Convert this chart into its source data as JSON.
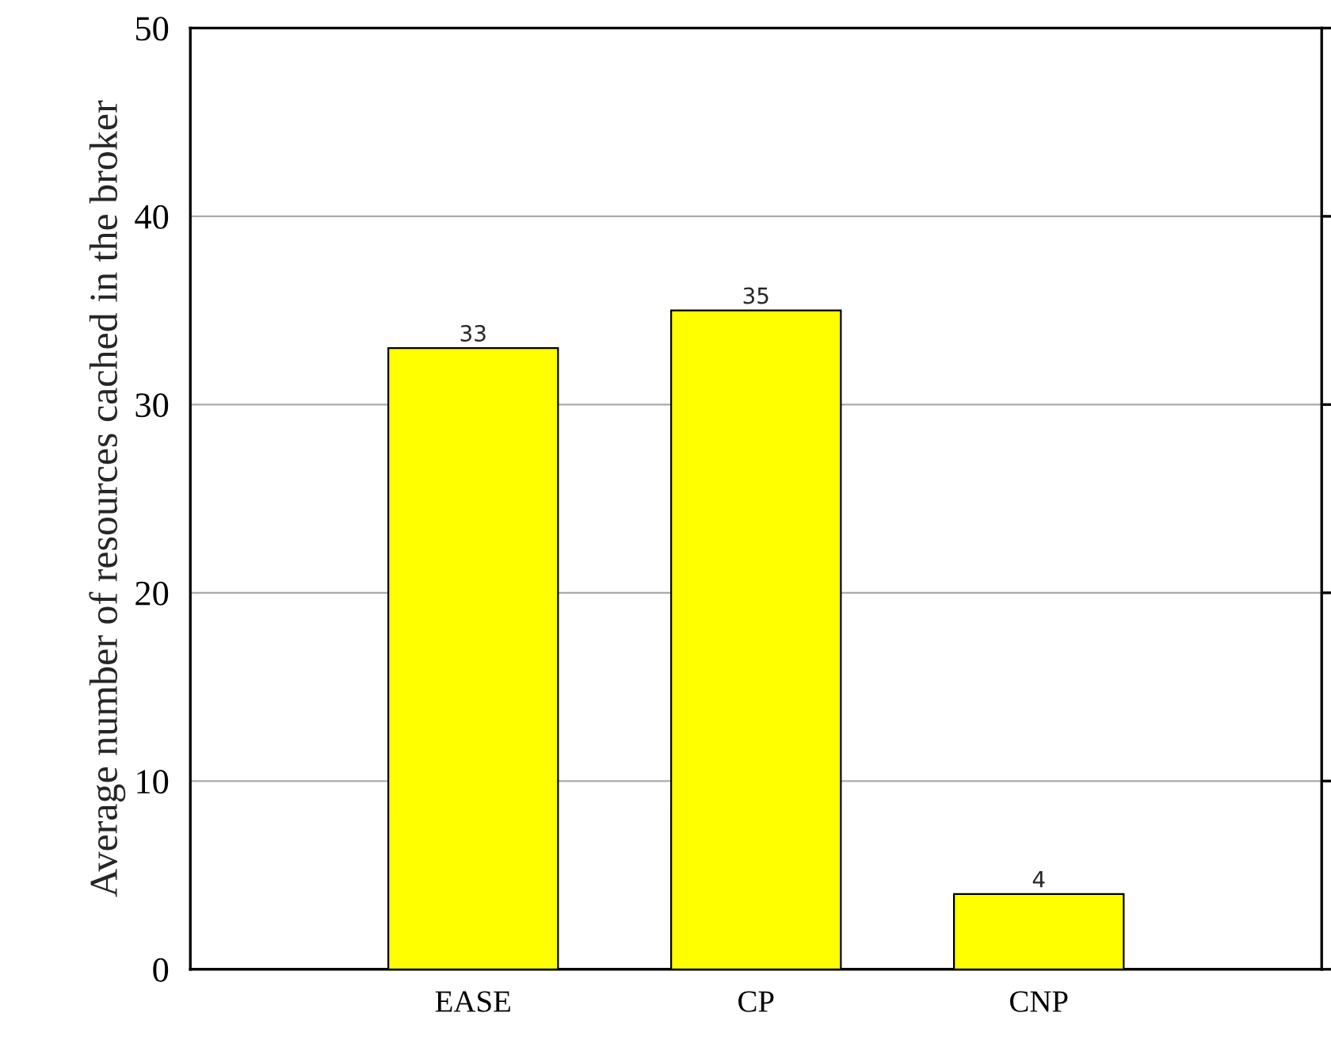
{
  "chart_data": {
    "type": "bar",
    "ylabel": "Average number of resources cached in the broker",
    "categories": [
      "EASE",
      "CP",
      "CNP"
    ],
    "values": [
      33,
      35,
      4
    ],
    "color": "#ffff00",
    "ylim": [
      0,
      50
    ],
    "yticks": [
      0,
      10,
      20,
      30,
      40,
      50
    ],
    "grid": "y",
    "data_labels": true
  }
}
